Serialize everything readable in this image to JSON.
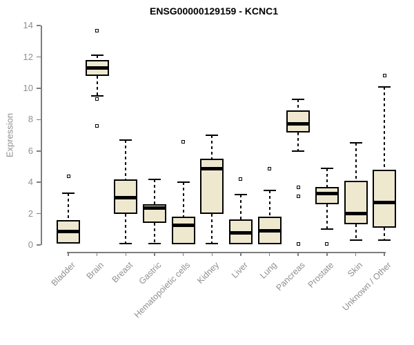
{
  "chart_data": {
    "type": "boxplot",
    "title": "ENSG00000129159 - KCNC1",
    "ylabel": "Expression",
    "xlabel": "",
    "ylim": [
      0,
      14
    ],
    "y_ticks": [
      0,
      2,
      4,
      6,
      8,
      10,
      12,
      14
    ],
    "grid": false,
    "legend": false,
    "categories": [
      "Bladder",
      "Brain",
      "Breast",
      "Gastric",
      "Hematopoietic cells",
      "Kidney",
      "Liver",
      "Lung",
      "Pancreas",
      "Prostate",
      "Skin",
      "Unknown / Other"
    ],
    "boxes": [
      {
        "category": "Bladder",
        "whisker_low": 0.1,
        "q1": 0.1,
        "median": 0.85,
        "q3": 1.6,
        "whisker_high": 3.3,
        "outliers": [
          4.4
        ]
      },
      {
        "category": "Brain",
        "whisker_low": 9.5,
        "q1": 10.8,
        "median": 11.3,
        "q3": 11.8,
        "whisker_high": 12.1,
        "outliers": [
          13.7,
          9.3,
          7.6
        ]
      },
      {
        "category": "Breast",
        "whisker_low": 0.1,
        "q1": 2.0,
        "median": 3.0,
        "q3": 4.2,
        "whisker_high": 6.7,
        "outliers": []
      },
      {
        "category": "Gastric",
        "whisker_low": 0.1,
        "q1": 1.4,
        "median": 2.35,
        "q3": 2.6,
        "whisker_high": 4.2,
        "outliers": []
      },
      {
        "category": "Hematopoietic cells",
        "whisker_low": 0.05,
        "q1": 0.05,
        "median": 1.25,
        "q3": 1.8,
        "whisker_high": 4.0,
        "outliers": [
          6.6
        ]
      },
      {
        "category": "Kidney",
        "whisker_low": 0.1,
        "q1": 2.0,
        "median": 4.85,
        "q3": 5.5,
        "whisker_high": 7.0,
        "outliers": []
      },
      {
        "category": "Liver",
        "whisker_low": 0.05,
        "q1": 0.05,
        "median": 0.75,
        "q3": 1.65,
        "whisker_high": 3.2,
        "outliers": [
          4.2
        ]
      },
      {
        "category": "Lung",
        "whisker_low": 0.05,
        "q1": 0.05,
        "median": 0.9,
        "q3": 1.8,
        "whisker_high": 3.5,
        "outliers": [
          4.85
        ]
      },
      {
        "category": "Pancreas",
        "whisker_low": 6.0,
        "q1": 7.2,
        "median": 7.75,
        "q3": 8.6,
        "whisker_high": 9.3,
        "outliers": [
          3.7,
          3.1,
          0.05
        ]
      },
      {
        "category": "Prostate",
        "whisker_low": 1.0,
        "q1": 2.6,
        "median": 3.3,
        "q3": 3.7,
        "whisker_high": 4.9,
        "outliers": [
          0.05
        ]
      },
      {
        "category": "Skin",
        "whisker_low": 0.3,
        "q1": 1.3,
        "median": 2.0,
        "q3": 4.1,
        "whisker_high": 6.5,
        "outliers": []
      },
      {
        "category": "Unknown / Other",
        "whisker_low": 0.3,
        "q1": 1.1,
        "median": 2.7,
        "q3": 4.8,
        "whisker_high": 10.1,
        "outliers": [
          10.8
        ]
      }
    ],
    "colors": {
      "box_fill": "#EEE8CF",
      "box_border": "#000000",
      "median": "#000000",
      "whisker": "#000000",
      "outlier_border": "#000000",
      "outlier_fill": "#FFFFFF",
      "axis": "#7D7D7D",
      "tick_text": "#8F8F8F",
      "title_text": "#000000"
    }
  }
}
